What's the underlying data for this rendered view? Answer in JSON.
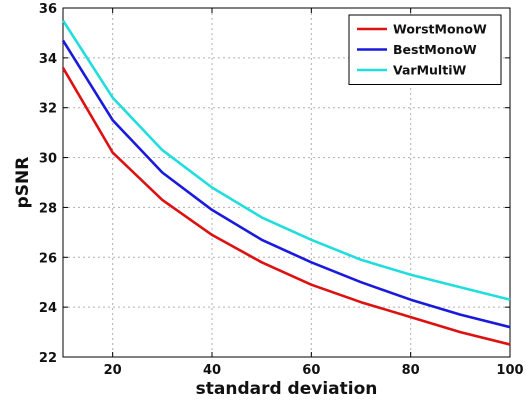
{
  "chart_data": {
    "type": "line",
    "title": "",
    "xlabel": "standard deviation",
    "ylabel": "pSNR",
    "xlim": [
      10,
      100
    ],
    "ylim": [
      22,
      36
    ],
    "xticks": [
      20,
      40,
      60,
      80,
      100
    ],
    "yticks": [
      22,
      24,
      26,
      28,
      30,
      32,
      34,
      36
    ],
    "grid": true,
    "legend_position": "top-right",
    "x": [
      10,
      20,
      30,
      40,
      50,
      60,
      70,
      80,
      90,
      100
    ],
    "series": [
      {
        "name": "WorstMonoW",
        "color": "#dd1111",
        "values": [
          33.6,
          30.2,
          28.3,
          26.9,
          25.8,
          24.9,
          24.2,
          23.6,
          23.0,
          22.5
        ]
      },
      {
        "name": "BestMonoW",
        "color": "#1a1adc",
        "values": [
          34.7,
          31.5,
          29.4,
          27.9,
          26.7,
          25.8,
          25.0,
          24.3,
          23.7,
          23.2
        ]
      },
      {
        "name": "VarMultiW",
        "color": "#22dddd",
        "values": [
          35.5,
          32.4,
          30.3,
          28.8,
          27.6,
          26.7,
          25.9,
          25.3,
          24.8,
          24.3
        ]
      }
    ]
  }
}
